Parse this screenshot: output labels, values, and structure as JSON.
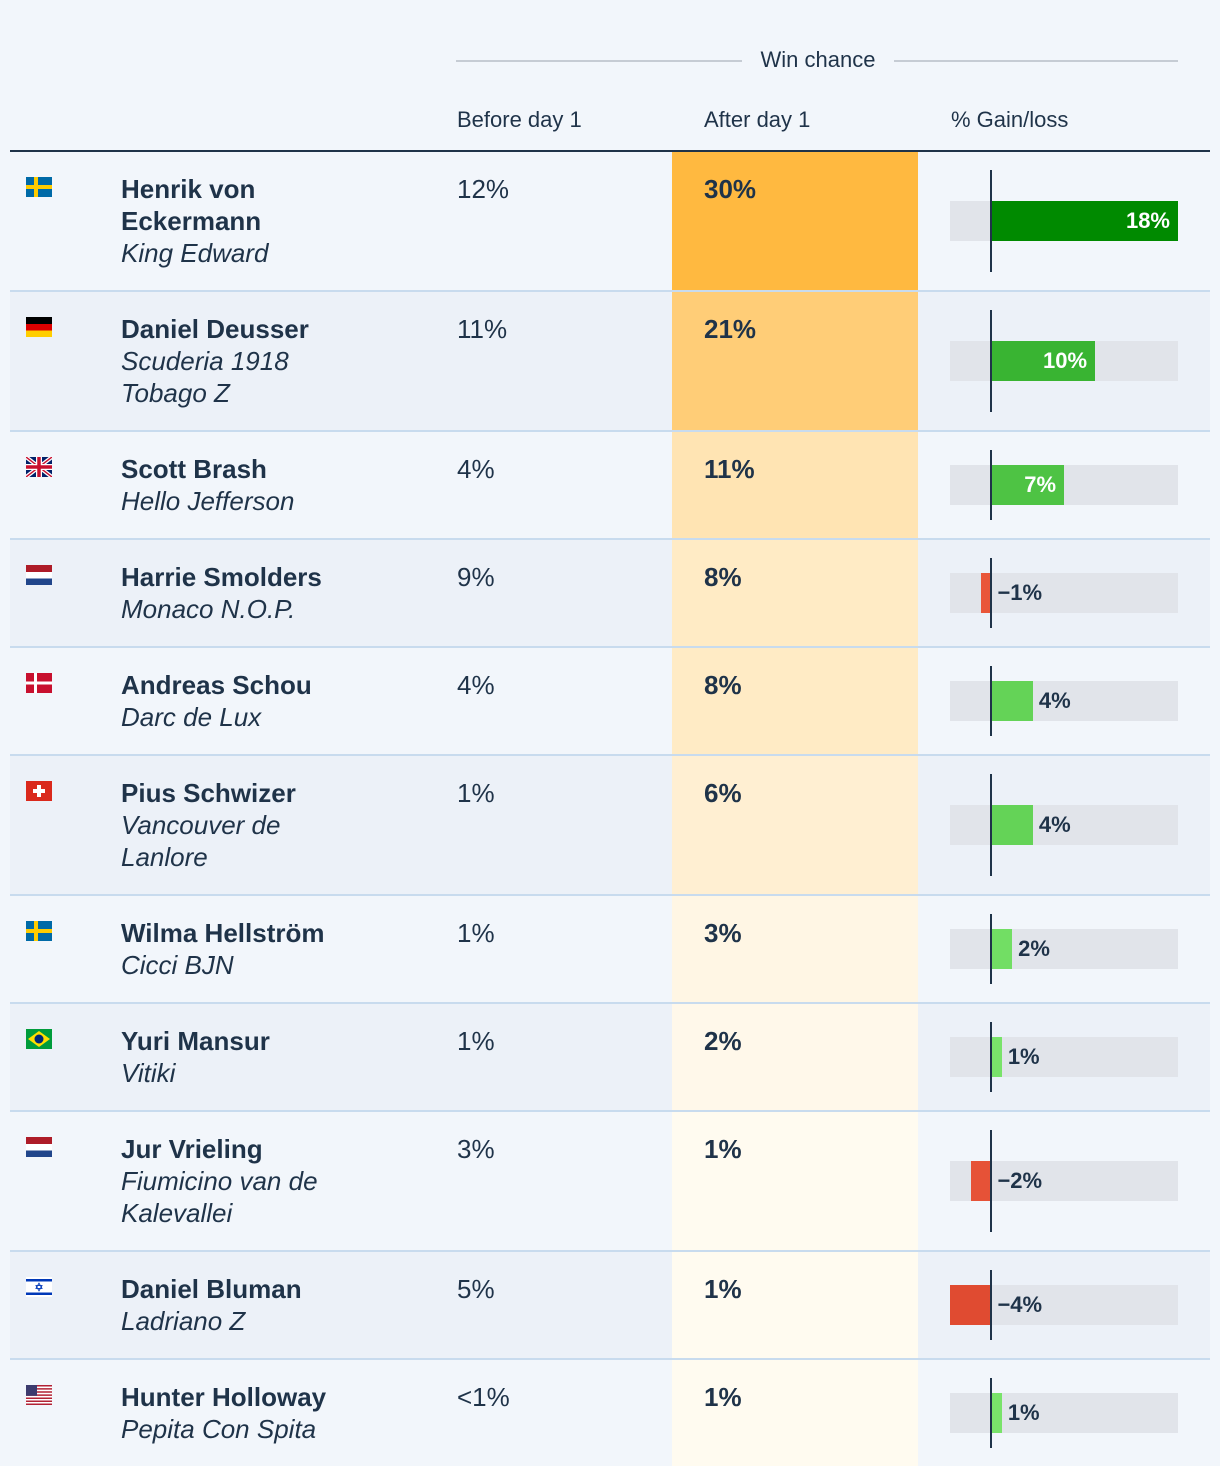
{
  "header": {
    "group": "Win chance",
    "columns": [
      "Before day 1",
      "After day 1",
      "% Gain/loss"
    ]
  },
  "rows": [
    {
      "rider": "Henrik von Eckermann",
      "horse": "King Edward",
      "before": "12%",
      "after": {
        "value": 30,
        "label": "30%"
      },
      "gain": {
        "value": 18,
        "label": "18%"
      }
    },
    {
      "rider": "Daniel Deusser",
      "horse": "Scuderia 1918 Tobago Z",
      "before": "11%",
      "after": {
        "value": 21,
        "label": "21%"
      },
      "gain": {
        "value": 10,
        "label": "10%"
      }
    },
    {
      "rider": "Scott Brash",
      "horse": "Hello Jefferson",
      "before": "4%",
      "after": {
        "value": 11,
        "label": "11%"
      },
      "gain": {
        "value": 7,
        "label": "7%"
      }
    },
    {
      "rider": "Harrie Smolders",
      "horse": "Monaco N.O.P.",
      "before": "9%",
      "after": {
        "value": 8,
        "label": "8%"
      },
      "gain": {
        "value": -1,
        "label": "−1%"
      }
    },
    {
      "rider": "Andreas Schou",
      "horse": "Darc de Lux",
      "before": "4%",
      "after": {
        "value": 8,
        "label": "8%"
      },
      "gain": {
        "value": 4,
        "label": "4%"
      }
    },
    {
      "rider": "Pius Schwizer",
      "horse": "Vancouver de Lanlore",
      "before": "1%",
      "after": {
        "value": 6,
        "label": "6%"
      },
      "gain": {
        "value": 4,
        "label": "4%"
      }
    },
    {
      "rider": "Wilma Hellström",
      "horse": "Cicci BJN",
      "before": "1%",
      "after": {
        "value": 3,
        "label": "3%"
      },
      "gain": {
        "value": 2,
        "label": "2%"
      }
    },
    {
      "rider": "Yuri Mansur",
      "horse": "Vitiki",
      "before": "1%",
      "after": {
        "value": 2,
        "label": "2%"
      },
      "gain": {
        "value": 1,
        "label": "1%"
      }
    },
    {
      "rider": "Jur Vrieling",
      "horse": "Fiumicino van de Kalevallei",
      "before": "3%",
      "after": {
        "value": 1,
        "label": "1%"
      },
      "gain": {
        "value": -2,
        "label": "−2%"
      }
    },
    {
      "rider": "Daniel Bluman",
      "horse": "Ladriano Z",
      "before": "5%",
      "after": {
        "value": 1,
        "label": "1%"
      },
      "gain": {
        "value": -4,
        "label": "−4%"
      }
    },
    {
      "rider": "Hunter Holloway",
      "horse": "Pepita Con Spita",
      "before": "<1%",
      "after": {
        "value": 1,
        "label": "1%"
      },
      "gain": {
        "value": 1,
        "label": "1%"
      }
    }
  ]
}
